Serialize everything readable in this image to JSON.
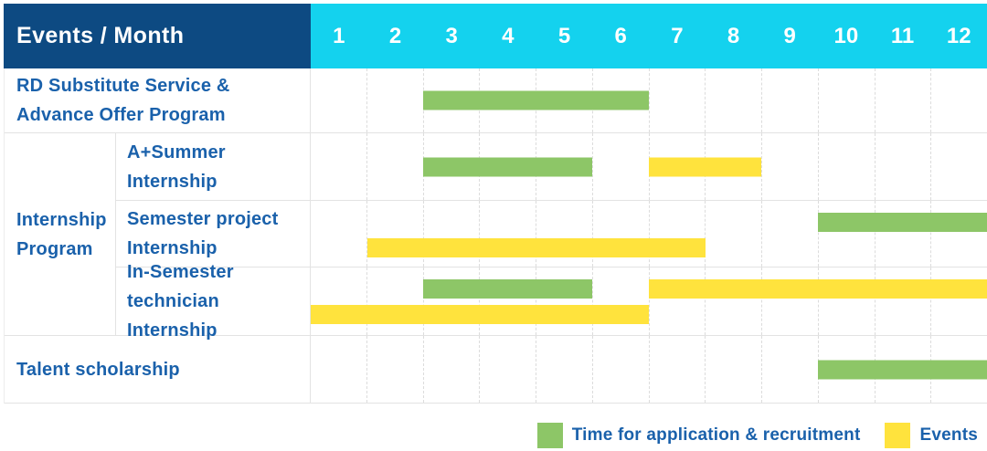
{
  "header": {
    "title": "Events / Month",
    "months": [
      "1",
      "2",
      "3",
      "4",
      "5",
      "6",
      "7",
      "8",
      "9",
      "10",
      "11",
      "12"
    ]
  },
  "colors": {
    "header_bg": "#0d4a82",
    "months_header_bg": "#14d2ee",
    "label_text": "#1a61ab",
    "application_green": "#8dc667",
    "events_yellow": "#ffe33d"
  },
  "chart_data": {
    "type": "bar",
    "variant": "gantt-timeline",
    "title": "Events / Month",
    "x_axis": {
      "label": "Month",
      "ticks": [
        1,
        2,
        3,
        4,
        5,
        6,
        7,
        8,
        9,
        10,
        11,
        12
      ],
      "range": [
        1,
        12
      ]
    },
    "grid": true,
    "legend_position": "bottom-right",
    "series": [
      {
        "id": "application",
        "label": "Time for application & recruitment",
        "color": "#8dc667"
      },
      {
        "id": "events",
        "label": "Events",
        "color": "#ffe33d"
      }
    ],
    "rows": [
      {
        "label": "RD Substitute Service &\nAdvance Offer Program",
        "group": null,
        "bars": [
          {
            "series": "application",
            "start_month": 3,
            "end_month": 6,
            "lane": "center"
          }
        ]
      },
      {
        "label": "A+Summer\nInternship",
        "group": "Internship\nProgram",
        "bars": [
          {
            "series": "application",
            "start_month": 3,
            "end_month": 5,
            "lane": "center"
          },
          {
            "series": "events",
            "start_month": 7,
            "end_month": 8,
            "lane": "center"
          }
        ]
      },
      {
        "label": "Semester project\nInternship",
        "group": "Internship\nProgram",
        "bars": [
          {
            "series": "application",
            "start_month": 10,
            "end_month": 12,
            "lane": "top"
          },
          {
            "series": "events",
            "start_month": 2,
            "end_month": 7,
            "lane": "bottom"
          }
        ]
      },
      {
        "label": "In-Semester\ntechnician Internship",
        "group": "Internship\nProgram",
        "bars": [
          {
            "series": "application",
            "start_month": 3,
            "end_month": 5,
            "lane": "top"
          },
          {
            "series": "events",
            "start_month": 7,
            "end_month": 12,
            "lane": "top"
          },
          {
            "series": "events",
            "start_month": 1,
            "end_month": 6,
            "lane": "bottom"
          }
        ]
      },
      {
        "label": "Talent scholarship",
        "group": null,
        "bars": [
          {
            "series": "application",
            "start_month": 10,
            "end_month": 12,
            "lane": "center"
          }
        ]
      }
    ]
  }
}
